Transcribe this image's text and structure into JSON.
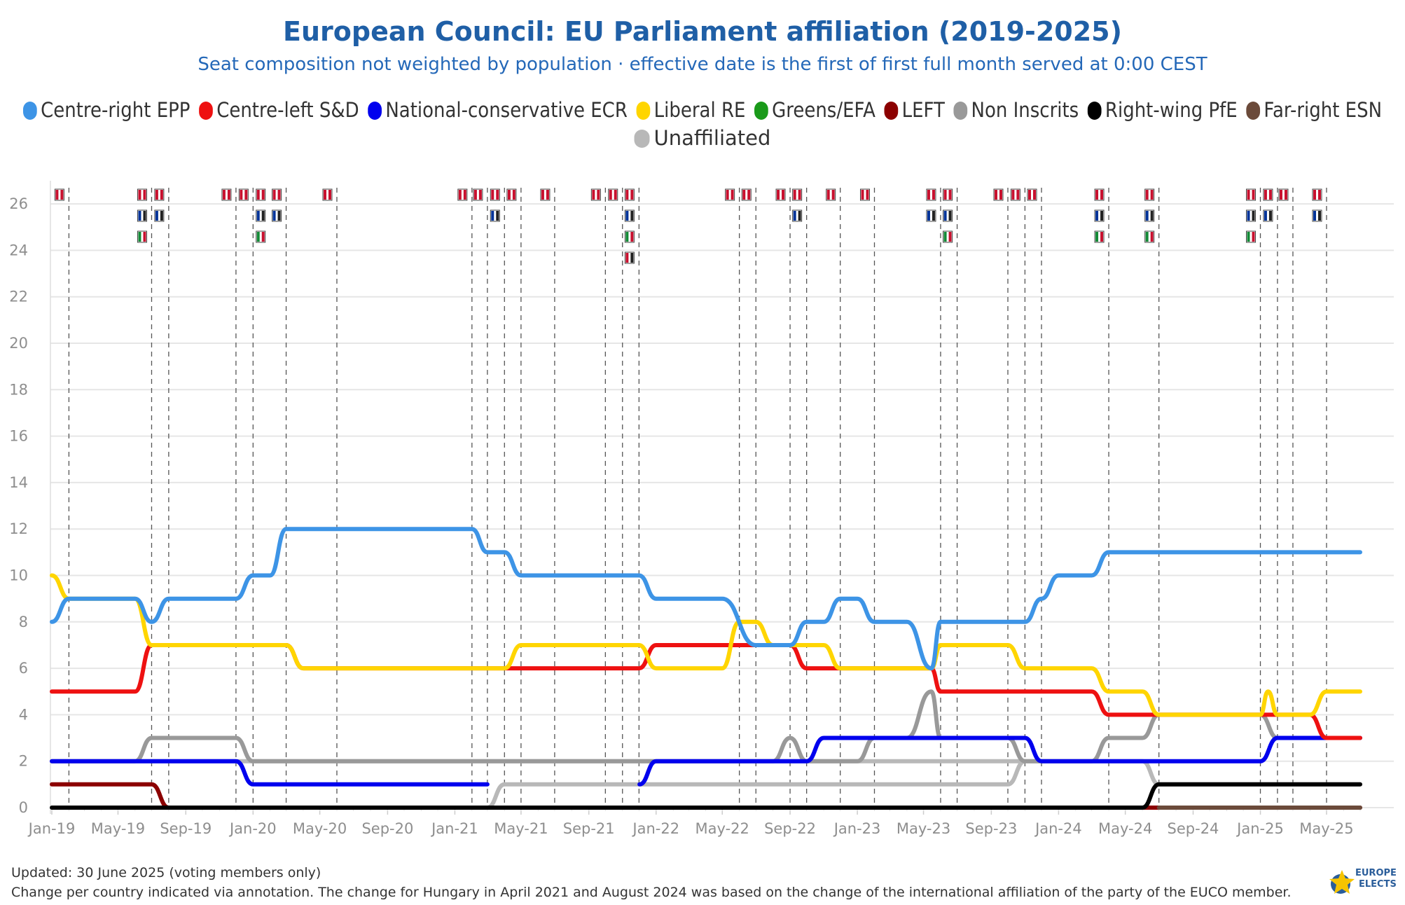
{
  "chart_data": {
    "type": "line",
    "title": "European Council: EU Parliament affiliation (2019-2025)",
    "subtitle": "Seat composition not weighted by population · effective date is the first of first full month served at 0:00 CEST",
    "xlabel": "",
    "ylabel": "",
    "x_tick_labels": [
      "Jan-19",
      "May-19",
      "Sep-19",
      "Jan-20",
      "May-20",
      "Sep-20",
      "Jan-21",
      "May-21",
      "Sep-21",
      "Jan-22",
      "May-22",
      "Sep-22",
      "Jan-23",
      "May-23",
      "Sep-23",
      "Jan-24",
      "May-24",
      "Sep-24",
      "Jan-25",
      "May-25"
    ],
    "y_ticks": [
      0,
      2,
      4,
      6,
      8,
      10,
      12,
      14,
      16,
      18,
      20,
      22,
      24,
      26
    ],
    "ylim": [
      0,
      27
    ],
    "x_range": [
      "2019-01-01",
      "2025-07-01"
    ],
    "grid": true,
    "legend_position": "top",
    "change_dates": [
      "2019-02-01",
      "2019-07-01",
      "2019-08-01",
      "2019-12-01",
      "2020-01-01",
      "2020-03-01",
      "2020-06-01",
      "2021-02-01",
      "2021-03-01",
      "2021-04-01",
      "2021-05-01",
      "2021-07-01",
      "2021-10-01",
      "2021-11-01",
      "2021-12-01",
      "2022-06-01",
      "2022-07-01",
      "2022-09-01",
      "2022-10-01",
      "2022-12-01",
      "2023-02-01",
      "2023-06-01",
      "2023-07-01",
      "2023-10-01",
      "2023-11-01",
      "2023-12-01",
      "2024-04-01",
      "2024-07-01",
      "2025-01-01",
      "2025-02-01",
      "2025-03-01",
      "2025-05-01"
    ],
    "series": [
      {
        "name": "Centre-right EPP",
        "color": "#3d94e6",
        "points": [
          [
            "2019-01-01",
            8
          ],
          [
            "2019-02-01",
            9
          ],
          [
            "2019-06-01",
            9
          ],
          [
            "2019-07-01",
            8
          ],
          [
            "2019-08-01",
            9
          ],
          [
            "2019-12-01",
            9
          ],
          [
            "2020-01-01",
            10
          ],
          [
            "2020-02-01",
            10
          ],
          [
            "2020-03-01",
            12
          ],
          [
            "2021-02-01",
            12
          ],
          [
            "2021-03-01",
            11
          ],
          [
            "2021-04-01",
            11
          ],
          [
            "2021-05-01",
            10
          ],
          [
            "2021-12-01",
            10
          ],
          [
            "2022-01-01",
            9
          ],
          [
            "2022-05-01",
            9
          ],
          [
            "2022-07-01",
            7
          ],
          [
            "2022-09-01",
            7
          ],
          [
            "2022-10-01",
            8
          ],
          [
            "2022-11-01",
            8
          ],
          [
            "2022-12-01",
            9
          ],
          [
            "2023-01-01",
            9
          ],
          [
            "2023-02-01",
            8
          ],
          [
            "2023-04-01",
            8
          ],
          [
            "2023-05-15",
            6
          ],
          [
            "2023-06-01",
            8
          ],
          [
            "2023-11-01",
            8
          ],
          [
            "2023-12-01",
            9
          ],
          [
            "2024-01-01",
            10
          ],
          [
            "2024-03-01",
            10
          ],
          [
            "2024-04-01",
            11
          ],
          [
            "2025-07-01",
            11
          ]
        ]
      },
      {
        "name": "Centre-left S&D",
        "color": "#ee1111",
        "points": [
          [
            "2019-01-01",
            5
          ],
          [
            "2019-06-01",
            5
          ],
          [
            "2019-07-01",
            7
          ],
          [
            "2020-03-01",
            7
          ],
          [
            "2020-04-01",
            6
          ],
          [
            "2021-12-01",
            6
          ],
          [
            "2022-01-01",
            7
          ],
          [
            "2022-09-01",
            7
          ],
          [
            "2022-10-01",
            6
          ],
          [
            "2022-12-01",
            6
          ],
          [
            "2023-05-15",
            6
          ],
          [
            "2023-06-01",
            5
          ],
          [
            "2024-03-01",
            5
          ],
          [
            "2024-04-01",
            4
          ],
          [
            "2024-07-01",
            4
          ],
          [
            "2025-01-01",
            4
          ],
          [
            "2025-04-01",
            4
          ],
          [
            "2025-05-01",
            3
          ],
          [
            "2025-07-01",
            3
          ]
        ]
      },
      {
        "name": "National-conservative ECR",
        "color": "#0000ee",
        "points": [
          [
            "2019-01-01",
            2
          ],
          [
            "2019-06-01",
            2
          ],
          [
            "2019-07-01",
            2
          ],
          [
            "2019-12-01",
            2
          ],
          [
            "2020-01-01",
            1
          ],
          [
            "2021-03-01",
            1
          ],
          [
            "2021-03-02",
            null
          ],
          [
            "2021-12-01",
            null
          ],
          [
            "2021-12-02",
            1
          ],
          [
            "2022-01-01",
            2
          ],
          [
            "2022-09-01",
            2
          ],
          [
            "2022-10-01",
            2
          ],
          [
            "2022-11-01",
            3
          ],
          [
            "2023-09-01",
            3
          ],
          [
            "2023-11-01",
            3
          ],
          [
            "2023-12-01",
            2
          ],
          [
            "2024-07-01",
            2
          ],
          [
            "2025-01-01",
            2
          ],
          [
            "2025-02-01",
            3
          ],
          [
            "2025-07-01",
            3
          ]
        ]
      },
      {
        "name": "Liberal RE",
        "color": "#ffd500",
        "points": [
          [
            "2019-01-01",
            10
          ],
          [
            "2019-02-01",
            9
          ],
          [
            "2019-06-01",
            9
          ],
          [
            "2019-07-01",
            7
          ],
          [
            "2020-03-01",
            7
          ],
          [
            "2020-04-01",
            6
          ],
          [
            "2021-04-01",
            6
          ],
          [
            "2021-05-01",
            7
          ],
          [
            "2021-12-01",
            7
          ],
          [
            "2022-01-01",
            6
          ],
          [
            "2022-05-01",
            6
          ],
          [
            "2022-06-01",
            8
          ],
          [
            "2022-07-01",
            8
          ],
          [
            "2022-08-01",
            7
          ],
          [
            "2022-11-01",
            7
          ],
          [
            "2022-12-01",
            6
          ],
          [
            "2023-05-15",
            6
          ],
          [
            "2023-06-01",
            7
          ],
          [
            "2023-10-01",
            7
          ],
          [
            "2023-11-01",
            6
          ],
          [
            "2024-03-01",
            6
          ],
          [
            "2024-04-01",
            5
          ],
          [
            "2024-06-01",
            5
          ],
          [
            "2024-07-01",
            4
          ],
          [
            "2025-01-01",
            4
          ],
          [
            "2025-01-15",
            5
          ],
          [
            "2025-02-01",
            4
          ],
          [
            "2025-04-01",
            4
          ],
          [
            "2025-05-01",
            5
          ],
          [
            "2025-07-01",
            5
          ]
        ]
      },
      {
        "name": "Greens/EFA",
        "color": "#1a9a1a",
        "points": []
      },
      {
        "name": "LEFT",
        "color": "#8b0000",
        "points": [
          [
            "2019-01-01",
            1
          ],
          [
            "2019-07-01",
            1
          ],
          [
            "2019-08-01",
            0
          ],
          [
            "2025-07-01",
            0
          ]
        ]
      },
      {
        "name": "Non Inscrits",
        "color": "#999999",
        "points": [
          [
            "2019-01-01",
            2
          ],
          [
            "2019-06-01",
            2
          ],
          [
            "2019-07-01",
            3
          ],
          [
            "2019-12-01",
            3
          ],
          [
            "2020-01-01",
            2
          ],
          [
            "2022-08-01",
            2
          ],
          [
            "2022-09-01",
            3
          ],
          [
            "2022-10-01",
            2
          ],
          [
            "2023-01-01",
            2
          ],
          [
            "2023-02-01",
            3
          ],
          [
            "2023-04-01",
            3
          ],
          [
            "2023-05-15",
            5
          ],
          [
            "2023-06-01",
            3
          ],
          [
            "2023-10-01",
            3
          ],
          [
            "2023-11-01",
            2
          ],
          [
            "2024-03-01",
            2
          ],
          [
            "2024-04-01",
            3
          ],
          [
            "2024-06-01",
            3
          ],
          [
            "2024-07-01",
            4
          ],
          [
            "2025-01-01",
            4
          ],
          [
            "2025-02-01",
            3
          ],
          [
            "2025-07-01",
            3
          ]
        ]
      },
      {
        "name": "Right-wing PfE",
        "color": "#000000",
        "points": [
          [
            "2019-01-01",
            0
          ],
          [
            "2024-06-01",
            0
          ],
          [
            "2024-07-01",
            1
          ],
          [
            "2025-07-01",
            1
          ]
        ]
      },
      {
        "name": "Far-right ESN",
        "color": "#6b4a3a",
        "points": [
          [
            "2024-07-01",
            0
          ],
          [
            "2025-07-01",
            0
          ]
        ]
      },
      {
        "name": "Unaffiliated",
        "color": "#b8b8b8",
        "points": [
          [
            "2019-01-01",
            2
          ],
          [
            "2020-01-01",
            2
          ],
          [
            "2021-03-01",
            2
          ],
          [
            "2021-04-01",
            2
          ],
          [
            "2023-10-01",
            2
          ],
          [
            "2023-11-01",
            2
          ],
          [
            "2024-06-01",
            2
          ],
          [
            "2024-07-01",
            1
          ],
          [
            "2025-07-01",
            1
          ]
        ]
      }
    ],
    "extra_lines": [
      {
        "color": "#b8b8b8",
        "points": [
          [
            "2021-03-01",
            0
          ],
          [
            "2021-04-01",
            1
          ],
          [
            "2023-10-01",
            1
          ],
          [
            "2023-11-01",
            2
          ]
        ]
      },
      {
        "color": "#ee1111",
        "points": [
          [
            "2024-06-01",
            0
          ],
          [
            "2024-07-01",
            0
          ]
        ]
      }
    ],
    "flag_markers": [
      {
        "date": "2019-02-01",
        "count": 1
      },
      {
        "date": "2019-07-01",
        "count": 3
      },
      {
        "date": "2019-08-01",
        "count": 2
      },
      {
        "date": "2019-12-01",
        "count": 1
      },
      {
        "date": "2020-01-01",
        "count": 1
      },
      {
        "date": "2020-02-01",
        "count": 3
      },
      {
        "date": "2020-03-01",
        "count": 2
      },
      {
        "date": "2020-06-01",
        "count": 1
      },
      {
        "date": "2021-02-01",
        "count": 1
      },
      {
        "date": "2021-03-01",
        "count": 1
      },
      {
        "date": "2021-04-01",
        "count": 2
      },
      {
        "date": "2021-05-01",
        "count": 1
      },
      {
        "date": "2021-07-01",
        "count": 1
      },
      {
        "date": "2021-10-01",
        "count": 1
      },
      {
        "date": "2021-11-01",
        "count": 1
      },
      {
        "date": "2021-12-01",
        "count": 4
      },
      {
        "date": "2022-06-01",
        "count": 1
      },
      {
        "date": "2022-07-01",
        "count": 1
      },
      {
        "date": "2022-09-01",
        "count": 1
      },
      {
        "date": "2022-10-01",
        "count": 2
      },
      {
        "date": "2022-12-01",
        "count": 1
      },
      {
        "date": "2023-02-01",
        "count": 1
      },
      {
        "date": "2023-06-01",
        "count": 2
      },
      {
        "date": "2023-07-01",
        "count": 3
      },
      {
        "date": "2023-10-01",
        "count": 1
      },
      {
        "date": "2023-11-01",
        "count": 1
      },
      {
        "date": "2023-12-01",
        "count": 1
      },
      {
        "date": "2024-04-01",
        "count": 3
      },
      {
        "date": "2024-07-01",
        "count": 3
      },
      {
        "date": "2025-01-01",
        "count": 3
      },
      {
        "date": "2025-02-01",
        "count": 2
      },
      {
        "date": "2025-03-01",
        "count": 1
      },
      {
        "date": "2025-05-01",
        "count": 2
      }
    ]
  },
  "legend": {
    "items": [
      {
        "label": "Centre-right EPP",
        "color": "#3d94e6"
      },
      {
        "label": "Centre-left S&D",
        "color": "#ee1111"
      },
      {
        "label": "National-conservative ECR",
        "color": "#0000ee"
      },
      {
        "label": "Liberal RE",
        "color": "#ffd500"
      },
      {
        "label": "Greens/EFA",
        "color": "#1a9a1a"
      },
      {
        "label": "LEFT",
        "color": "#8b0000"
      },
      {
        "label": "Non Inscrits",
        "color": "#999999"
      },
      {
        "label": "Right-wing PfE",
        "color": "#000000"
      },
      {
        "label": "Far-right ESN",
        "color": "#6b4a3a"
      },
      {
        "label": "Unaffiliated",
        "color": "#b8b8b8"
      }
    ]
  },
  "footer": {
    "line1": "Updated: 30 June 2025 (voting members only)",
    "line2": "Change per country indicated via annotation. The change for Hungary in April 2021 and August 2024 was based on the change of the international affiliation of the party of the EUCO member."
  },
  "logo": {
    "line1": "EUROPE",
    "line2": "ELECTS"
  },
  "colors": {
    "title": "#1f5fa6",
    "grid": "#e6e6e6",
    "axis_text": "#8e8e8e"
  }
}
